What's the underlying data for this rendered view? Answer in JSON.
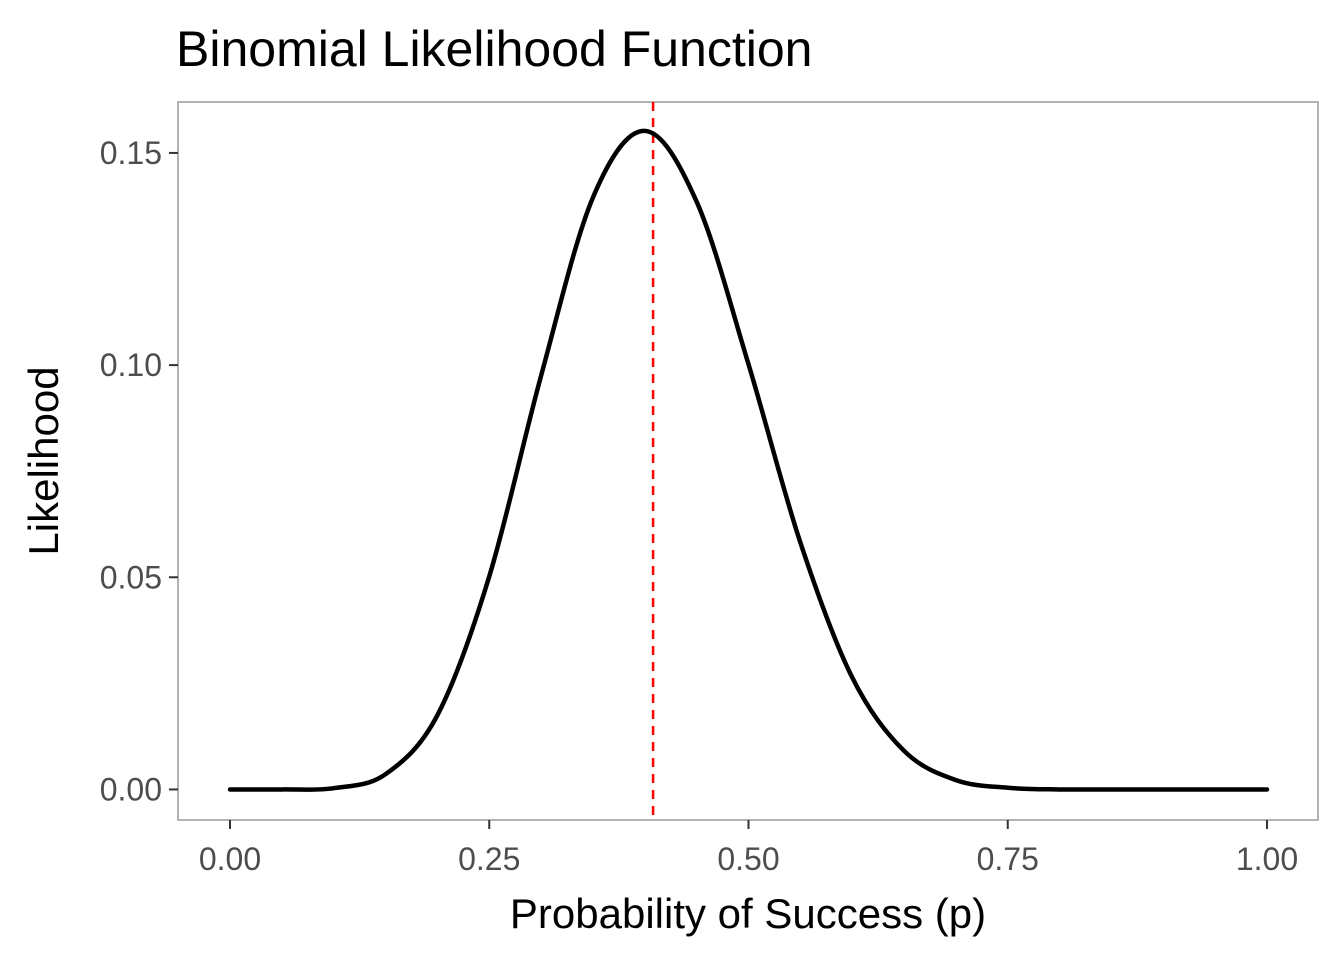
{
  "chart_data": {
    "type": "line",
    "title": "Binomial Likelihood Function",
    "xlabel": "Probability of Success (p)",
    "ylabel": "Likelihood",
    "xlim": [
      0,
      1
    ],
    "ylim": [
      -0.0072,
      0.162
    ],
    "x_ticks": [
      0.0,
      0.25,
      0.5,
      0.75,
      1.0
    ],
    "x_tick_labels": [
      "0.00",
      "0.25",
      "0.50",
      "0.75",
      "1.00"
    ],
    "y_ticks": [
      0.0,
      0.05,
      0.1,
      0.15
    ],
    "y_tick_labels": [
      "0.00",
      "0.05",
      "0.10",
      "0.15"
    ],
    "grid": false,
    "legend": "none",
    "series": [
      {
        "color": "#000000",
        "x": [
          0.0,
          0.05,
          0.1,
          0.15,
          0.2,
          0.25,
          0.3,
          0.35,
          0.4,
          0.45,
          0.5,
          0.55,
          0.6,
          0.65,
          0.7,
          0.75,
          0.8,
          0.85,
          0.9,
          0.95,
          1.0
        ],
        "y": [
          0.0,
          0.0,
          0.0003,
          0.0036,
          0.0175,
          0.0502,
          0.0975,
          0.1395,
          0.1552,
          0.1385,
          0.1002,
          0.0582,
          0.0264,
          0.0091,
          0.0022,
          0.0004,
          0.0,
          0.0,
          0.0,
          0.0,
          0.0
        ]
      }
    ],
    "reference_lines": [
      {
        "axis": "x",
        "value": 0.408,
        "color": "#ff0000",
        "style": "dashed"
      }
    ]
  }
}
